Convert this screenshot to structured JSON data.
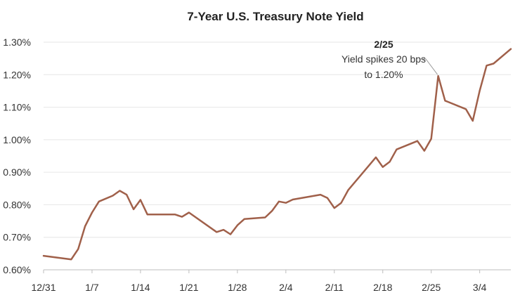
{
  "chart_data": {
    "type": "line",
    "title": "7-Year U.S. Treasury Note Yield",
    "xlabel": "",
    "ylabel": "",
    "x_ticks": [
      {
        "day": 0,
        "label": "12/31"
      },
      {
        "day": 7,
        "label": "1/7"
      },
      {
        "day": 14,
        "label": "1/14"
      },
      {
        "day": 21,
        "label": "1/21"
      },
      {
        "day": 28,
        "label": "1/28"
      },
      {
        "day": 35,
        "label": "2/4"
      },
      {
        "day": 42,
        "label": "2/11"
      },
      {
        "day": 49,
        "label": "2/18"
      },
      {
        "day": 56,
        "label": "2/25"
      },
      {
        "day": 63,
        "label": "3/4"
      }
    ],
    "xlim": [
      0,
      67.5
    ],
    "ylim": [
      0.6,
      1.3
    ],
    "y_ticks": [
      {
        "value": 0.6,
        "label": "0.60%"
      },
      {
        "value": 0.7,
        "label": "0.70%"
      },
      {
        "value": 0.8,
        "label": "0.80%"
      },
      {
        "value": 0.9,
        "label": "0.90%"
      },
      {
        "value": 1.0,
        "label": "1.00%"
      },
      {
        "value": 1.1,
        "label": "1.10%"
      },
      {
        "value": 1.2,
        "label": "1.20%"
      },
      {
        "value": 1.3,
        "label": "1.30%"
      }
    ],
    "grid": true,
    "line_color": "#a0604a",
    "series": [
      {
        "points": [
          [
            0,
            0.643
          ],
          [
            4,
            0.632
          ],
          [
            5,
            0.664
          ],
          [
            6,
            0.734
          ],
          [
            7,
            0.776
          ],
          [
            8,
            0.81
          ],
          [
            10,
            0.828
          ],
          [
            11,
            0.843
          ],
          [
            12,
            0.831
          ],
          [
            13,
            0.786
          ],
          [
            14,
            0.815
          ],
          [
            15,
            0.77
          ],
          [
            19,
            0.77
          ],
          [
            20,
            0.763
          ],
          [
            21,
            0.776
          ],
          [
            25,
            0.716
          ],
          [
            26,
            0.723
          ],
          [
            27,
            0.709
          ],
          [
            28,
            0.737
          ],
          [
            29,
            0.756
          ],
          [
            32,
            0.761
          ],
          [
            33,
            0.781
          ],
          [
            34,
            0.81
          ],
          [
            35,
            0.806
          ],
          [
            36,
            0.816
          ],
          [
            40,
            0.831
          ],
          [
            41,
            0.821
          ],
          [
            42,
            0.79
          ],
          [
            43,
            0.806
          ],
          [
            44,
            0.845
          ],
          [
            48,
            0.946
          ],
          [
            49,
            0.916
          ],
          [
            50,
            0.932
          ],
          [
            51,
            0.97
          ],
          [
            54,
            0.996
          ],
          [
            55,
            0.966
          ],
          [
            56,
            1.003
          ],
          [
            57,
            1.196
          ],
          [
            58,
            1.12
          ],
          [
            61,
            1.094
          ],
          [
            62,
            1.058
          ],
          [
            63,
            1.151
          ],
          [
            64,
            1.228
          ],
          [
            65,
            1.234
          ],
          [
            67.5,
            1.279
          ]
        ]
      }
    ],
    "annotations": [
      {
        "heading": "2/25",
        "lines": [
          "Yield spikes 20 bps",
          "to 1.20%"
        ],
        "point": [
          57,
          1.196
        ]
      }
    ]
  }
}
